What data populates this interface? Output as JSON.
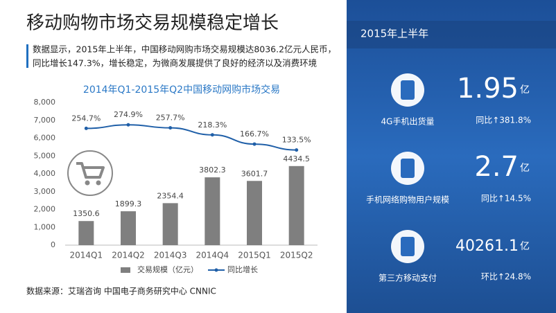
{
  "header": {
    "title": "移动购物市场交易规模稳定增长",
    "description": [
      "数据显示，2015年上半年，中国移动网购市场交易规模达8036.2亿元人民币，",
      "同比增长147.3%，增长稳定，为微商发展提供了良好的经济以及消费环境"
    ]
  },
  "chart_data": {
    "type": "bar",
    "title": "2014年Q1-2015年Q2中国移动网购市场交易",
    "categories": [
      "2014Q1",
      "2014Q2",
      "2014Q3",
      "2014Q4",
      "2015Q1",
      "2015Q2"
    ],
    "series": [
      {
        "name": "交易规模（亿元）",
        "color": "#7f7f7f",
        "values": [
          1350.6,
          1899.3,
          2354.4,
          3802.3,
          3601.7,
          4434.5
        ]
      },
      {
        "name": "同比增长",
        "color": "#1f5fa8",
        "axis": "y2",
        "values": [
          254.7,
          274.9,
          257.7,
          218.3,
          166.7,
          133.5
        ],
        "value_labels": [
          "254.7%",
          "274.9%",
          "257.7%",
          "218.3%",
          "166.7%",
          "133.5%"
        ]
      }
    ],
    "ylim": [
      0,
      8000
    ],
    "yticks": [
      0,
      {
        "value": 1000,
        "label": "1,000"
      },
      {
        "value": 2000,
        "label": "2,000"
      },
      {
        "value": 3000,
        "label": "3,000"
      },
      {
        "value": 4000,
        "label": "4,000"
      },
      {
        "value": 5000,
        "label": "5,000"
      },
      {
        "value": 6000,
        "label": "6,000"
      },
      {
        "value": 7000,
        "label": "7,000"
      },
      {
        "value": 8000,
        "label": "8,000"
      }
    ],
    "y2lim": [
      -400,
      400
    ],
    "grid": false,
    "legend": "bottom"
  },
  "source": "数据来源：艾瑞咨询   中国电子商务研究中心 CNNIC",
  "panel": {
    "title": "2015年上半年",
    "items": [
      {
        "label": "4G手机出货量",
        "value": "1.95",
        "unit": "亿",
        "change": "同比↑381.8%"
      },
      {
        "label": "手机网络购物用户规模",
        "value": "2.7",
        "unit": "亿",
        "change": "同比↑14.5%"
      },
      {
        "label": "第三方移动支付",
        "value": "40261.1",
        "unit": "亿",
        "change": "环比↑24.8%"
      }
    ]
  }
}
